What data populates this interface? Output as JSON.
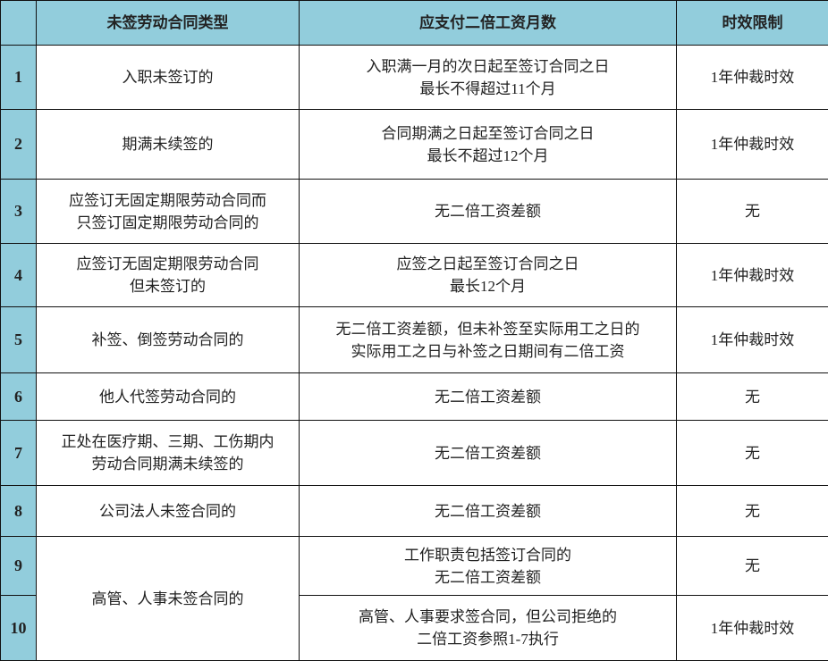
{
  "header_color": "#92cddc",
  "headers": [
    "",
    "未签劳动合同类型",
    "应支付二倍工资月数",
    "时效限制"
  ],
  "rows": [
    {
      "num": "1",
      "type": [
        "入职未签订的"
      ],
      "months": [
        "入职满一月的次日起至签订合同之日",
        "最长不得超过11个月"
      ],
      "limit": "1年仲裁时效"
    },
    {
      "num": "2",
      "type": [
        "期满未续签的"
      ],
      "months": [
        "合同期满之日起至签订合同之日",
        "最长不超过12个月"
      ],
      "limit": "1年仲裁时效"
    },
    {
      "num": "3",
      "type": [
        "应签订无固定期限劳动合同而",
        "只签订固定期限劳动合同的"
      ],
      "months": [
        "无二倍工资差额"
      ],
      "limit": "无"
    },
    {
      "num": "4",
      "type": [
        "应签订无固定期限劳动合同",
        "但未签订的"
      ],
      "months": [
        "应签之日起至签订合同之日",
        "最长12个月"
      ],
      "limit": "1年仲裁时效"
    },
    {
      "num": "5",
      "type": [
        "补签、倒签劳动合同的"
      ],
      "months": [
        "无二倍工资差额，但未补签至实际用工之日的",
        "实际用工之日与补签之日期间有二倍工资"
      ],
      "limit": "1年仲裁时效"
    },
    {
      "num": "6",
      "type": [
        "他人代签劳动合同的"
      ],
      "months": [
        "无二倍工资差额"
      ],
      "limit": "无"
    },
    {
      "num": "7",
      "type": [
        "正处在医疗期、三期、工伤期内",
        "劳动合同期满未续签的"
      ],
      "months": [
        "无二倍工资差额"
      ],
      "limit": "无"
    },
    {
      "num": "8",
      "type": [
        "公司法人未签合同的"
      ],
      "months": [
        "无二倍工资差额"
      ],
      "limit": "无"
    },
    {
      "num": "9",
      "type": [
        "高管、人事未签合同的"
      ],
      "months": [
        "工作职责包括签订合同的",
        "无二倍工资差额"
      ],
      "limit": "无"
    },
    {
      "num": "10",
      "months": [
        "高管、人事要求签合同，但公司拒绝的",
        "二倍工资参照1-7执行"
      ],
      "limit": "1年仲裁时效"
    }
  ]
}
